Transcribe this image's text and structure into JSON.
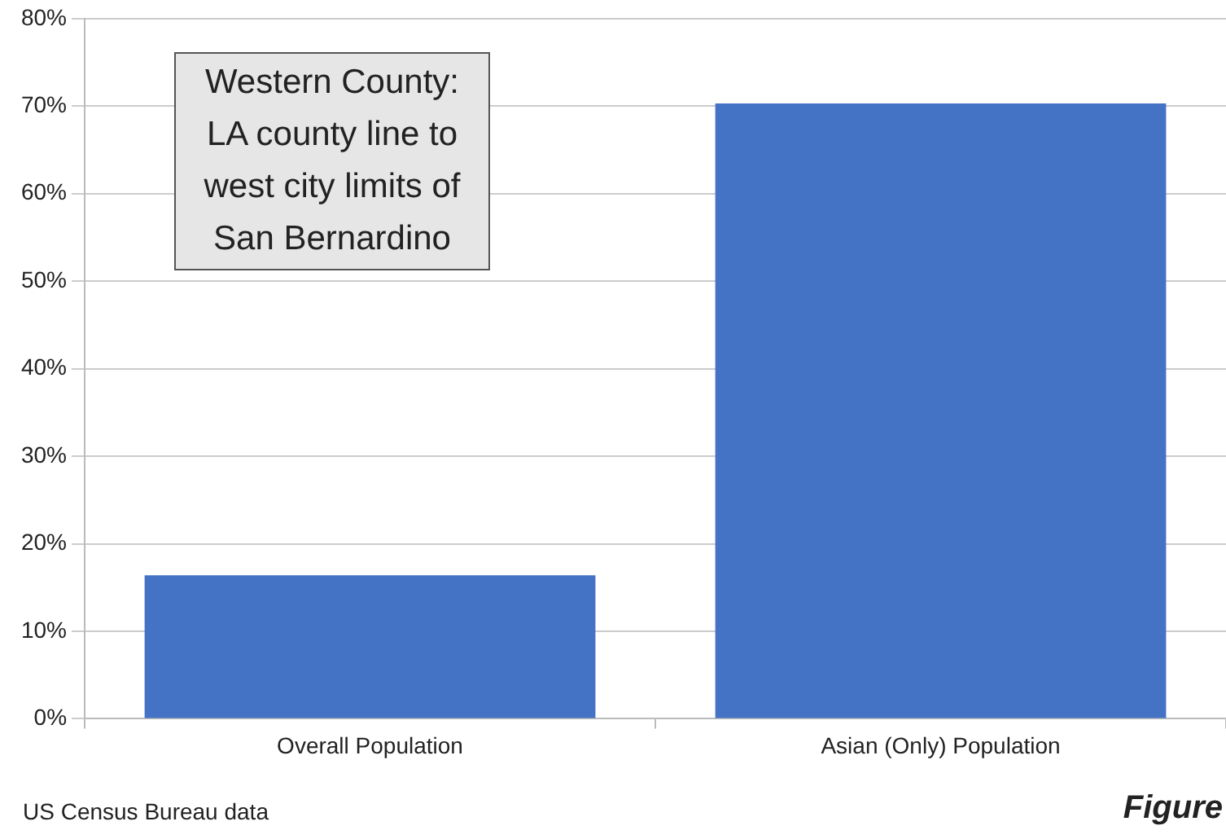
{
  "chart_data": {
    "type": "bar",
    "categories": [
      "Overall Population",
      "Asian (Only) Population"
    ],
    "values": [
      16.4,
      70.3
    ],
    "color": "#4472c4",
    "ylim": [
      0,
      80
    ],
    "yticks": [
      {
        "value": 0,
        "label": "0%"
      },
      {
        "value": 10,
        "label": "10%"
      },
      {
        "value": 20,
        "label": "20%"
      },
      {
        "value": 30,
        "label": "30%"
      },
      {
        "value": 40,
        "label": "40%"
      },
      {
        "value": 50,
        "label": "50%"
      },
      {
        "value": 60,
        "label": "60%"
      },
      {
        "value": 70,
        "label": "70%"
      },
      {
        "value": 80,
        "label": "80%"
      }
    ],
    "grid": "y",
    "legend": false,
    "annotations": [
      "Western County:\nLA county line to\nwest city limits of\nSan Bernardino",
      "US Census Bureau data",
      "Figure"
    ]
  }
}
